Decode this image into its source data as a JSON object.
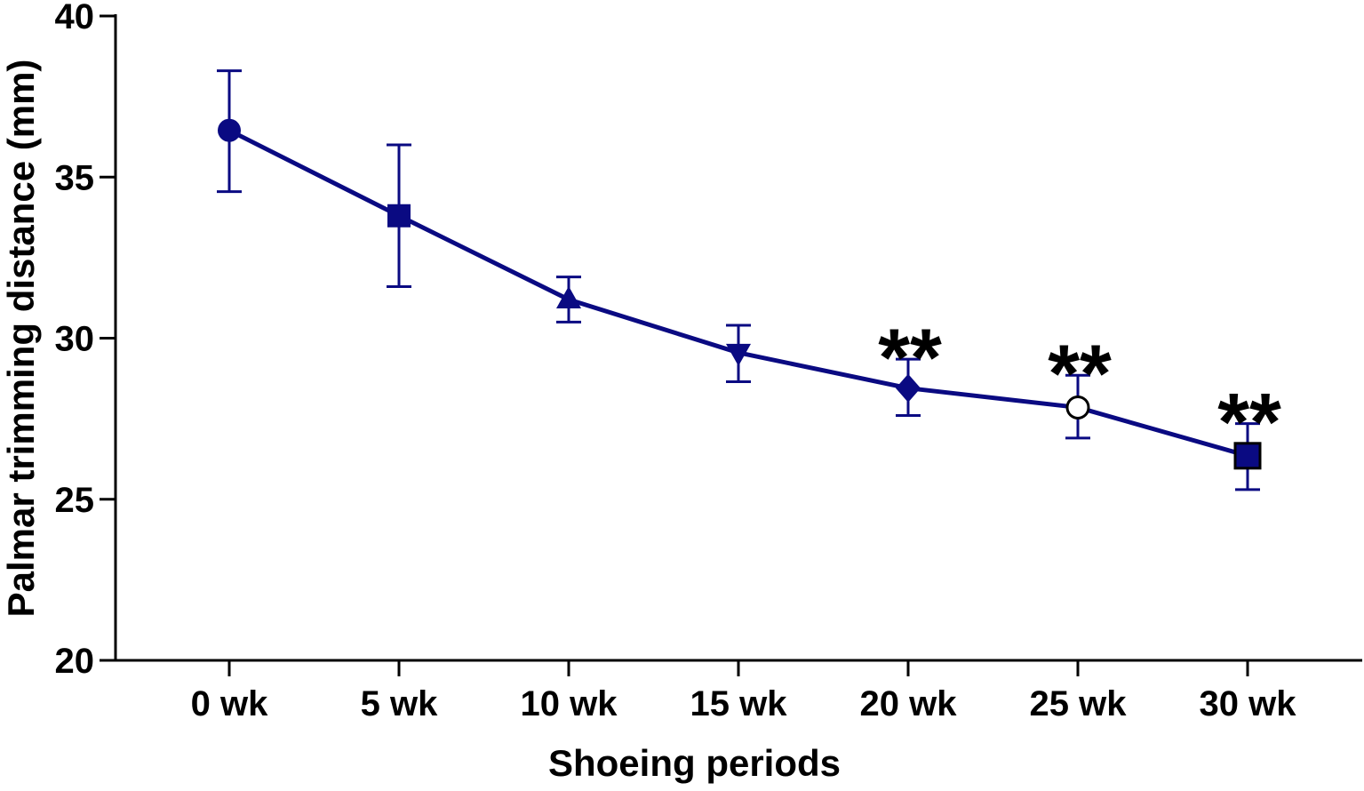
{
  "chart_data": {
    "type": "line",
    "title": "",
    "xlabel": "Shoeing periods",
    "ylabel": "Palmar trimming distance (mm)",
    "categories": [
      "0 wk",
      "5 wk",
      "10 wk",
      "15 wk",
      "20 wk",
      "25 wk",
      "30 wk"
    ],
    "ylim": [
      20,
      40
    ],
    "yticks": [
      20,
      25,
      30,
      35,
      40
    ],
    "grid": false,
    "legend": "none",
    "color": "#0a0a82",
    "series": [
      {
        "values": [
          36.45,
          33.8,
          31.2,
          29.55,
          28.45,
          27.85,
          26.35
        ],
        "error_lower": [
          34.55,
          31.6,
          30.5,
          28.65,
          27.6,
          26.9,
          25.3
        ],
        "error_upper": [
          38.3,
          36.0,
          31.9,
          30.4,
          29.35,
          28.85,
          27.35
        ],
        "markers": [
          "circle",
          "square",
          "triangle-up",
          "triangle-down",
          "diamond",
          "circle-open",
          "square-outlined"
        ]
      }
    ],
    "annotations": [
      {
        "category": "20 wk",
        "text": "**"
      },
      {
        "category": "25 wk",
        "text": "**"
      },
      {
        "category": "30 wk",
        "text": "**"
      }
    ]
  }
}
